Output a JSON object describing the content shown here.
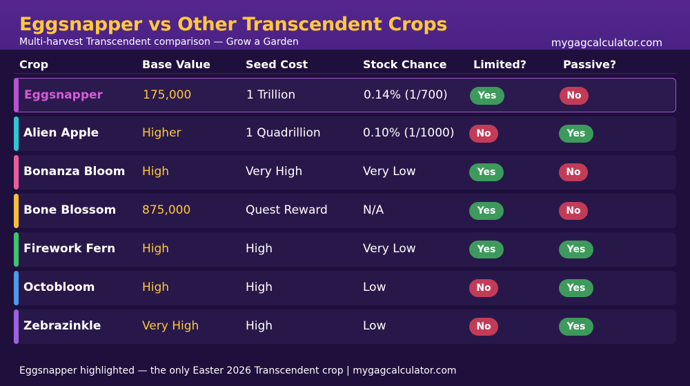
{
  "header": {
    "title": "Eggsnapper vs Other Transcendent Crops",
    "subtitle": "Multi-harvest Transcendent comparison — Grow a Garden",
    "site": "mygagcalculator.com"
  },
  "columns": {
    "crop": "Crop",
    "base_value": "Base Value",
    "seed_cost": "Seed Cost",
    "stock_chance": "Stock Chance",
    "limited": "Limited?",
    "passive": "Passive?"
  },
  "colors": {
    "title": "#ffc83d",
    "value": "#ffc83d",
    "highlight_name": "#d85ad6",
    "yes_badge": "#3d9a5c",
    "no_badge": "#c23c58"
  },
  "rows": [
    {
      "name": "Eggsnapper",
      "base_value": "175,000",
      "seed_cost": "1 Trillion",
      "stock_chance": "0.14% (1/700)",
      "limited": "Yes",
      "passive": "No",
      "accent": "#b554d1",
      "highlight": true
    },
    {
      "name": "Alien Apple",
      "base_value": "Higher",
      "seed_cost": "1 Quadrillion",
      "stock_chance": "0.10% (1/1000)",
      "limited": "No",
      "passive": "Yes",
      "accent": "#2fc6d2",
      "highlight": false
    },
    {
      "name": "Bonanza Bloom",
      "base_value": "High",
      "seed_cost": "Very High",
      "stock_chance": "Very Low",
      "limited": "Yes",
      "passive": "No",
      "accent": "#ea5c9c",
      "highlight": false
    },
    {
      "name": "Bone Blossom",
      "base_value": "875,000",
      "seed_cost": "Quest Reward",
      "stock_chance": "N/A",
      "limited": "Yes",
      "passive": "No",
      "accent": "#f4bd3c",
      "highlight": false
    },
    {
      "name": "Firework Fern",
      "base_value": "High",
      "seed_cost": "High",
      "stock_chance": "Very Low",
      "limited": "Yes",
      "passive": "Yes",
      "accent": "#3fc46c",
      "highlight": false
    },
    {
      "name": "Octobloom",
      "base_value": "High",
      "seed_cost": "High",
      "stock_chance": "Low",
      "limited": "No",
      "passive": "Yes",
      "accent": "#4c9ae8",
      "highlight": false
    },
    {
      "name": "Zebrazinkle",
      "base_value": "Very High",
      "seed_cost": "High",
      "stock_chance": "Low",
      "limited": "No",
      "passive": "Yes",
      "accent": "#9a63e0",
      "highlight": false
    }
  ],
  "footer": "Eggsnapper highlighted — the only Easter 2026 Transcendent crop  |  mygagcalculator.com"
}
